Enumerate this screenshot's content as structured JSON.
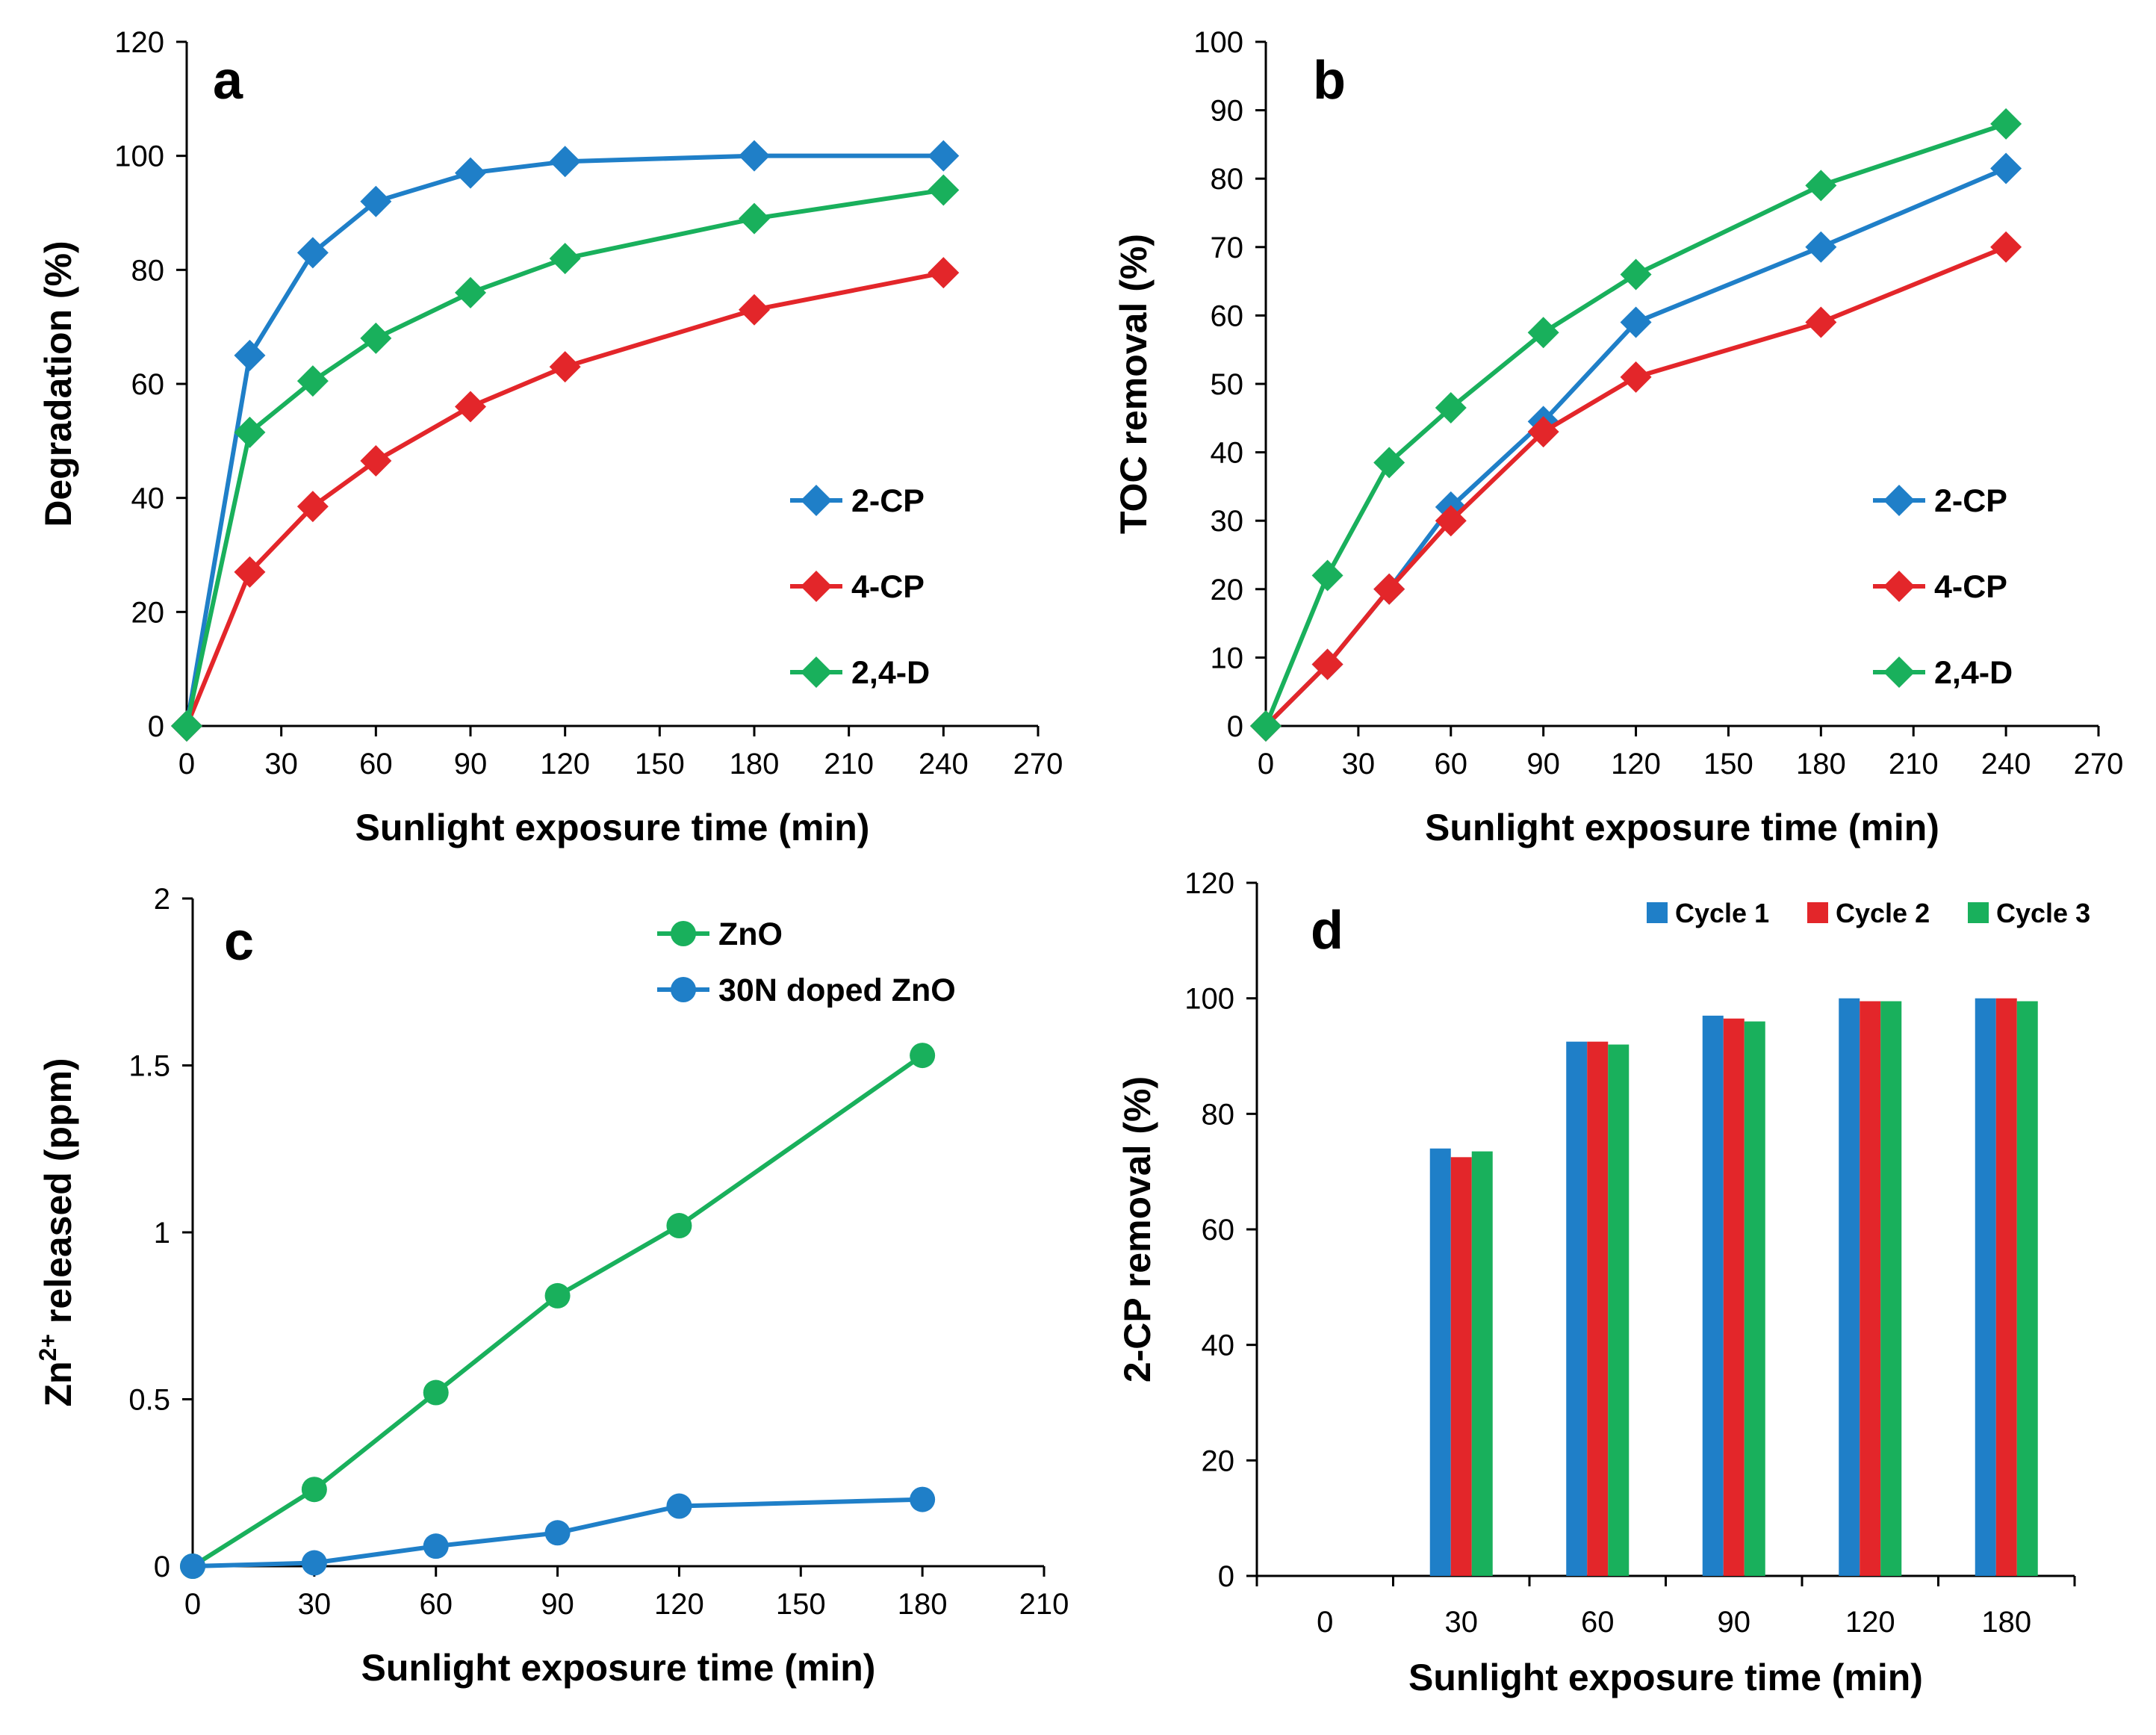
{
  "colors": {
    "blue": "#1f7fc8",
    "red": "#e3262a",
    "green": "#19b05c",
    "axis": "#000000"
  },
  "chart_data": [
    {
      "panel": "a",
      "type": "line",
      "marker": "diamond",
      "xlabel": "Sunlight exposure time (min)",
      "ylabel": "Degradation (%)",
      "xlim": [
        0,
        270
      ],
      "ylim": [
        0,
        120
      ],
      "xticks": [
        "0",
        "30",
        "60",
        "90",
        "120",
        "150",
        "180",
        "210",
        "240",
        "270"
      ],
      "yticks": [
        "0",
        "20",
        "40",
        "60",
        "80",
        "100",
        "120"
      ],
      "legend_position": "right",
      "x": [
        0,
        20,
        40,
        60,
        90,
        120,
        180,
        240
      ],
      "series": [
        {
          "name": "2-CP",
          "color_key": "blue",
          "values": [
            0,
            65,
            83,
            92,
            97,
            99,
            100,
            100
          ]
        },
        {
          "name": "4-CP",
          "color_key": "red",
          "values": [
            0,
            27,
            38.5,
            46.5,
            56,
            63,
            73,
            79.5
          ]
        },
        {
          "name": "2,4-D",
          "color_key": "green",
          "values": [
            0,
            51.5,
            60.5,
            68,
            76,
            82,
            89,
            94
          ]
        }
      ]
    },
    {
      "panel": "b",
      "type": "line",
      "marker": "diamond",
      "xlabel": "Sunlight exposure time (min)",
      "ylabel": "TOC removal (%)",
      "xlim": [
        0,
        270
      ],
      "ylim": [
        0,
        100
      ],
      "xticks": [
        "0",
        "30",
        "60",
        "90",
        "120",
        "150",
        "180",
        "210",
        "240",
        "270"
      ],
      "yticks": [
        "0",
        "10",
        "20",
        "30",
        "40",
        "50",
        "60",
        "70",
        "80",
        "90",
        "100"
      ],
      "legend_position": "right",
      "x": [
        0,
        20,
        40,
        60,
        90,
        120,
        180,
        240
      ],
      "series": [
        {
          "name": "2-CP",
          "color_key": "blue",
          "values": [
            0,
            9,
            20,
            32,
            44.5,
            59,
            70,
            81.5
          ]
        },
        {
          "name": "4-CP",
          "color_key": "red",
          "values": [
            0,
            9,
            20,
            30,
            43,
            51,
            59,
            70
          ]
        },
        {
          "name": "2,4-D",
          "color_key": "green",
          "values": [
            0,
            22,
            38.5,
            46.5,
            57.5,
            66,
            79,
            88
          ]
        }
      ]
    },
    {
      "panel": "c",
      "type": "line",
      "marker": "circle",
      "xlabel": "Sunlight exposure time (min)",
      "ylabel_main": "Zn",
      "ylabel_sup": "2+",
      "ylabel_rest": " released (ppm)",
      "xlim": [
        0,
        210
      ],
      "ylim": [
        0,
        2
      ],
      "xticks": [
        "0",
        "30",
        "60",
        "90",
        "120",
        "150",
        "180",
        "210"
      ],
      "yticks": [
        "0",
        "0.5",
        "1",
        "1.5",
        "2"
      ],
      "legend_position": "top-right",
      "x": [
        0,
        30,
        60,
        90,
        120,
        180
      ],
      "series": [
        {
          "name": "ZnO",
          "color_key": "green",
          "values": [
            0,
            0.23,
            0.52,
            0.81,
            1.02,
            1.53
          ]
        },
        {
          "name": "30N doped ZnO",
          "color_key": "blue",
          "values": [
            0,
            0.01,
            0.06,
            0.1,
            0.18,
            0.2
          ]
        }
      ]
    },
    {
      "panel": "d",
      "type": "bar",
      "xlabel": "Sunlight exposure time (min)",
      "ylabel": "2-CP removal (%)",
      "ylim": [
        0,
        120
      ],
      "yticks": [
        "0",
        "20",
        "40",
        "60",
        "80",
        "100",
        "120"
      ],
      "categories": [
        "0",
        "30",
        "60",
        "90",
        "120",
        "180"
      ],
      "legend_position": "top-right",
      "series": [
        {
          "name": "Cycle 1",
          "color_key": "blue",
          "values": [
            0,
            74,
            92.5,
            97,
            100,
            100
          ]
        },
        {
          "name": "Cycle 2",
          "color_key": "red",
          "values": [
            0,
            72.5,
            92.5,
            96.5,
            99.5,
            100
          ]
        },
        {
          "name": "Cycle 3",
          "color_key": "green",
          "values": [
            0,
            73.5,
            92,
            96,
            99.5,
            99.5
          ]
        }
      ]
    }
  ]
}
